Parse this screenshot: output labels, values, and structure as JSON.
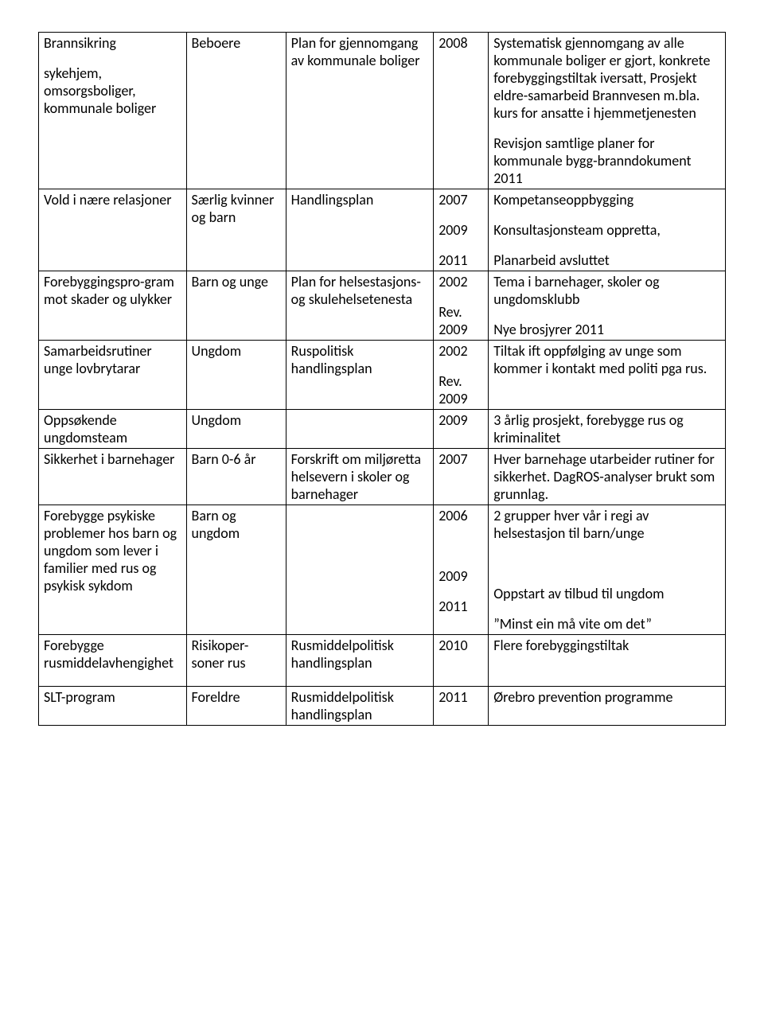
{
  "table": {
    "column_widths_pct": [
      21.5,
      14.5,
      21.5,
      8,
      34.5
    ],
    "border_color": "#000000",
    "background_color": "#ffffff",
    "font_family": "Calibri",
    "font_size_pt": 13,
    "rows": [
      {
        "c1": "Brannsikring\n\nsykehjem, omsorgsboliger, kommunale boliger",
        "c2": "Beboere",
        "c3": "Plan for gjennomgang av kommunale boliger",
        "c4": "2008",
        "c5": "Systematisk gjennomgang av alle kommunale boliger er gjort, konkrete forebyggingstiltak iversatt, Prosjekt eldre-samarbeid Brannvesen m.bla. kurs for ansatte i hjemmetjenesten\n\nRevisjon samtlige planer for kommunale bygg-branndokument 2011"
      },
      {
        "c1": "Vold i nære relasjoner",
        "c2": "Særlig kvinner og barn",
        "c3": "Handlingsplan",
        "c4": "2007\n\n2009\n\n2011",
        "c5": "Kompetanseoppbygging\n\nKonsultasjonsteam oppretta,\n\nPlanarbeid avsluttet"
      },
      {
        "c1": "Forebyggingspro-gram mot skader og ulykker",
        "c2": "Barn og unge",
        "c3": "Plan for helsestasjons- og skulehelsetenesta",
        "c4": "2002\n\nRev. 2009",
        "c5": "Tema i barnehager, skoler og ungdomsklubb\n\nNye brosjyrer 2011"
      },
      {
        "c1": "Samarbeidsrutiner unge lovbrytarar",
        "c2": "Ungdom",
        "c3": "Ruspolitisk handlingsplan",
        "c4": "2002\n\nRev. 2009",
        "c5": "Tiltak ift oppfølging av unge som kommer i kontakt med politi pga rus."
      },
      {
        "c1": "Oppsøkende ungdomsteam",
        "c2": "Ungdom",
        "c3": "",
        "c4": "2009",
        "c5": "3 årlig prosjekt, forebygge rus og kriminalitet"
      },
      {
        "c1": "Sikkerhet i barnehager",
        "c2": "Barn 0-6 år",
        "c3": "Forskrift om miljøretta helsevern i skoler og barnehager",
        "c4": "2007",
        "c5": "Hver barnehage utarbeider rutiner for sikkerhet. DagROS-analyser brukt som grunnlag."
      },
      {
        "c1": "Forebygge psykiske problemer hos barn og ungdom som lever i familier med rus og psykisk sykdom",
        "c2": "Barn og ungdom",
        "c3": "",
        "c4": "2006\n\n\n\n2009\n\n2011",
        "c5": "2 grupper hver vår i regi av helsestasjon til barn/unge\n\n\n\nOppstart av tilbud til ungdom\n\n”Minst ein må vite om det”"
      },
      {
        "c1": "Forebygge rusmiddelavhengighet",
        "c2": "Risikoper-soner rus",
        "c3": "Rusmiddelpolitisk handlingsplan",
        "c4": "2010",
        "c5": "Flere forebyggingstiltak\n\n"
      },
      {
        "c1": "SLT-program",
        "c2": "Foreldre",
        "c3": "Rusmiddelpolitisk handlingsplan",
        "c4": "2011",
        "c5": "Ørebro prevention programme"
      }
    ]
  }
}
